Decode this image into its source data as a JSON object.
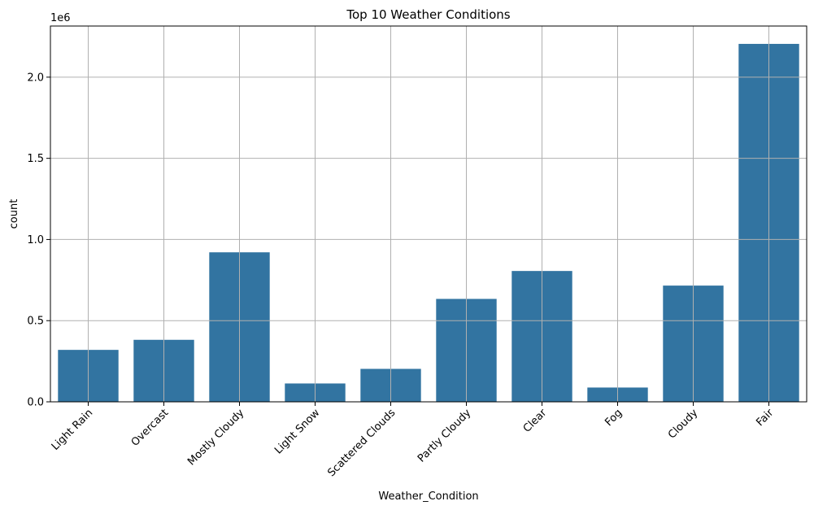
{
  "chart_data": {
    "type": "bar",
    "title": "Top 10 Weather Conditions",
    "xlabel": "Weather_Condition",
    "ylabel": "count",
    "y_scale_label": "1e6",
    "categories": [
      "Light Rain",
      "Overcast",
      "Mostly Cloudy",
      "Light Snow",
      "Scattered Clouds",
      "Partly Cloudy",
      "Clear",
      "Fog",
      "Cloudy",
      "Fair"
    ],
    "values": [
      320000,
      382000,
      921000,
      113000,
      203000,
      634000,
      806000,
      88000,
      716000,
      2205000
    ],
    "ylim": [
      0,
      2315000
    ],
    "yticks": [
      0,
      500000,
      1000000,
      1500000,
      2000000
    ],
    "ytick_labels": [
      "0.0",
      "0.5",
      "1.0",
      "1.5",
      "2.0"
    ],
    "bar_color": "#3274a1",
    "grid": true,
    "grid_color": "#b0b0b0"
  }
}
